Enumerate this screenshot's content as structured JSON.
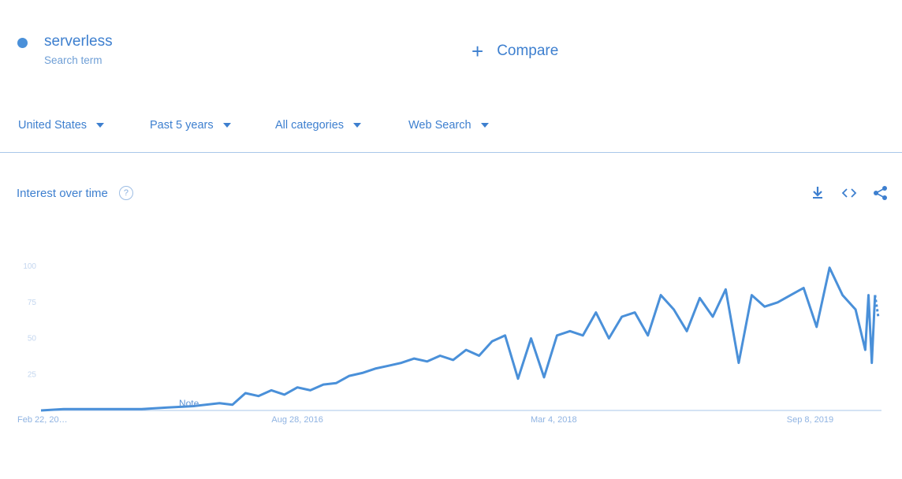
{
  "term": {
    "name": "serverless",
    "subtitle": "Search term",
    "color": "#4a90d9"
  },
  "compare": {
    "label": "Compare"
  },
  "filters": [
    {
      "label": "United States"
    },
    {
      "label": "Past 5 years"
    },
    {
      "label": "All categories"
    },
    {
      "label": "Web Search"
    }
  ],
  "section": {
    "title": "Interest over time",
    "help": "?"
  },
  "icons": {
    "download": "download-icon",
    "embed": "embed-code-icon",
    "share": "share-icon"
  },
  "chart_data": {
    "type": "line",
    "title": "",
    "xlabel": "",
    "ylabel": "",
    "ylim": [
      0,
      100
    ],
    "grid": false,
    "y_ticks": [
      "100",
      "75",
      "50",
      "25"
    ],
    "y_tick_values": [
      100,
      75,
      50,
      25
    ],
    "x_tick_labels": [
      "Feb 22, 20…",
      "Aug 28, 2016",
      "Mar 4, 2018",
      "Sep 8, 2019"
    ],
    "x_tick_dates": [
      "2015-02-22",
      "2016-08-28",
      "2018-03-04",
      "2019-09-08"
    ],
    "x_range": [
      "2015-02-22",
      "2020-02-09"
    ],
    "note": {
      "label": "Note",
      "date": "2015-12-20"
    },
    "series": [
      {
        "color": "#4a90d9",
        "points": [
          [
            "2015-02-22",
            0
          ],
          [
            "2015-04-12",
            1
          ],
          [
            "2015-06-07",
            1
          ],
          [
            "2015-08-02",
            1
          ],
          [
            "2015-09-27",
            1
          ],
          [
            "2015-11-22",
            2
          ],
          [
            "2016-01-17",
            3
          ],
          [
            "2016-03-13",
            5
          ],
          [
            "2016-04-10",
            4
          ],
          [
            "2016-05-08",
            12
          ],
          [
            "2016-06-05",
            10
          ],
          [
            "2016-07-03",
            14
          ],
          [
            "2016-07-31",
            11
          ],
          [
            "2016-08-28",
            16
          ],
          [
            "2016-09-25",
            14
          ],
          [
            "2016-10-23",
            18
          ],
          [
            "2016-11-20",
            19
          ],
          [
            "2016-12-18",
            24
          ],
          [
            "2017-01-15",
            26
          ],
          [
            "2017-02-12",
            29
          ],
          [
            "2017-03-12",
            31
          ],
          [
            "2017-04-09",
            33
          ],
          [
            "2017-05-07",
            36
          ],
          [
            "2017-06-04",
            34
          ],
          [
            "2017-07-02",
            38
          ],
          [
            "2017-07-30",
            35
          ],
          [
            "2017-08-27",
            42
          ],
          [
            "2017-09-24",
            38
          ],
          [
            "2017-10-22",
            48
          ],
          [
            "2017-11-19",
            52
          ],
          [
            "2017-12-17",
            22
          ],
          [
            "2018-01-14",
            50
          ],
          [
            "2018-02-11",
            23
          ],
          [
            "2018-03-11",
            52
          ],
          [
            "2018-04-08",
            55
          ],
          [
            "2018-05-06",
            52
          ],
          [
            "2018-06-03",
            68
          ],
          [
            "2018-07-01",
            50
          ],
          [
            "2018-07-29",
            65
          ],
          [
            "2018-08-26",
            68
          ],
          [
            "2018-09-23",
            52
          ],
          [
            "2018-10-21",
            80
          ],
          [
            "2018-11-18",
            70
          ],
          [
            "2018-12-16",
            55
          ],
          [
            "2019-01-13",
            78
          ],
          [
            "2019-02-10",
            65
          ],
          [
            "2019-03-10",
            84
          ],
          [
            "2019-04-07",
            33
          ],
          [
            "2019-05-05",
            80
          ],
          [
            "2019-06-02",
            72
          ],
          [
            "2019-06-30",
            75
          ],
          [
            "2019-07-28",
            80
          ],
          [
            "2019-08-25",
            85
          ],
          [
            "2019-09-22",
            58
          ],
          [
            "2019-10-20",
            99
          ],
          [
            "2019-11-17",
            80
          ],
          [
            "2019-12-15",
            70
          ],
          [
            "2020-01-05",
            42
          ],
          [
            "2020-01-12",
            80
          ],
          [
            "2020-01-19",
            33
          ],
          [
            "2020-01-26",
            80
          ],
          [
            "2020-02-02",
            65
          ]
        ]
      }
    ]
  }
}
